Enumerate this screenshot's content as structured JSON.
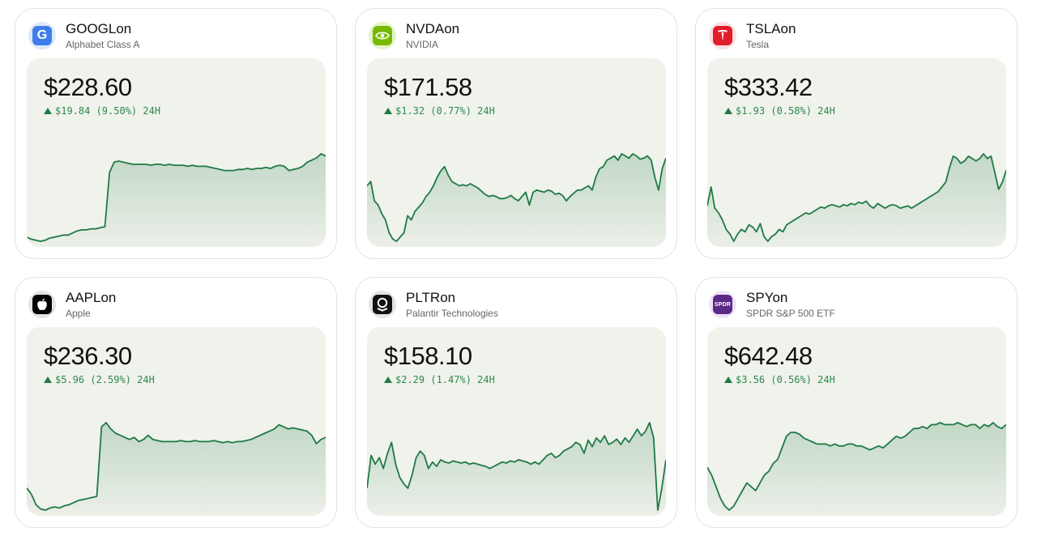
{
  "colors": {
    "up": "#1f7a43",
    "panel": "#f0f2ec"
  },
  "cards": [
    {
      "ticker": "GOOGLon",
      "name": "Alphabet Class A",
      "price": "$228.60",
      "change": "$19.84 (9.50%) 24H",
      "icon": "google-g-icon",
      "logo_text": "G",
      "logo_bg": "#dde8fb",
      "logo_fg": "#3f7ee8",
      "series": [
        8,
        6,
        5,
        4,
        5,
        7,
        8,
        9,
        10,
        10,
        12,
        14,
        15,
        15,
        16,
        16,
        17,
        18,
        70,
        80,
        81,
        80,
        79,
        78,
        78,
        78,
        78,
        77,
        78,
        78,
        77,
        78,
        77,
        77,
        77,
        76,
        77,
        76,
        76,
        76,
        75,
        74,
        73,
        72,
        72,
        72,
        73,
        73,
        74,
        73,
        74,
        74,
        75,
        74,
        76,
        77,
        76,
        72,
        73,
        74,
        76,
        80,
        82,
        84,
        88,
        86
      ]
    },
    {
      "ticker": "NVDAon",
      "name": "NVIDIA",
      "price": "$171.58",
      "change": "$1.32 (0.77%) 24H",
      "icon": "nvidia-eye-icon",
      "logo_text": "",
      "logo_bg": "#e3f4c8",
      "logo_fg": "#76b900",
      "series": [
        62,
        66,
        48,
        44,
        36,
        30,
        18,
        12,
        10,
        14,
        18,
        34,
        30,
        38,
        42,
        46,
        52,
        56,
        62,
        70,
        76,
        80,
        72,
        66,
        64,
        62,
        63,
        62,
        64,
        62,
        60,
        57,
        54,
        52,
        53,
        52,
        50,
        50,
        51,
        53,
        50,
        48,
        52,
        56,
        44,
        56,
        58,
        57,
        56,
        58,
        57,
        54,
        55,
        53,
        48,
        52,
        55,
        58,
        58,
        60,
        62,
        58,
        70,
        78,
        80,
        86,
        88,
        90,
        86,
        92,
        90,
        88,
        92,
        90,
        87,
        88,
        90,
        86,
        70,
        58,
        78,
        88
      ]
    },
    {
      "ticker": "TSLAon",
      "name": "Tesla",
      "price": "$333.42",
      "change": "$1.93 (0.58%) 24H",
      "icon": "tesla-t-icon",
      "logo_text": "T",
      "logo_bg": "#fbe0e0",
      "logo_fg": "#e11d2b",
      "series": [
        50,
        66,
        48,
        44,
        38,
        30,
        26,
        20,
        26,
        30,
        28,
        34,
        32,
        28,
        35,
        24,
        20,
        24,
        26,
        30,
        28,
        34,
        36,
        38,
        40,
        42,
        44,
        43,
        45,
        47,
        49,
        48,
        50,
        51,
        50,
        49,
        51,
        50,
        52,
        51,
        53,
        52,
        54,
        50,
        48,
        52,
        50,
        48,
        50,
        51,
        50,
        48,
        49,
        50,
        48,
        50,
        52,
        54,
        56,
        58,
        60,
        62,
        66,
        70,
        82,
        92,
        90,
        86,
        88,
        92,
        90,
        88,
        90,
        94,
        90,
        92,
        78,
        64,
        70,
        80
      ]
    },
    {
      "ticker": "AAPLon",
      "name": "Apple",
      "price": "$236.30",
      "change": "$5.96 (2.59%) 24H",
      "icon": "apple-icon",
      "logo_text": "",
      "logo_bg": "#e4e4e4",
      "logo_fg": "#000000",
      "series": [
        30,
        24,
        14,
        10,
        9,
        11,
        12,
        11,
        13,
        14,
        16,
        18,
        19,
        20,
        21,
        22,
        88,
        92,
        86,
        82,
        80,
        78,
        76,
        78,
        74,
        76,
        80,
        76,
        75,
        74,
        74,
        74,
        74,
        75,
        74,
        74,
        75,
        74,
        74,
        74,
        75,
        74,
        73,
        74,
        73,
        74,
        74,
        75,
        76,
        78,
        80,
        82,
        84,
        86,
        90,
        88,
        86,
        87,
        86,
        85,
        84,
        80,
        72,
        76,
        78
      ]
    },
    {
      "ticker": "PLTRon",
      "name": "Palantir Technologies",
      "price": "$158.10",
      "change": "$2.29 (1.47%) 24H",
      "icon": "palantir-icon",
      "logo_text": "",
      "logo_bg": "#e4e4e4",
      "logo_fg": "#111111",
      "series": [
        30,
        60,
        52,
        58,
        48,
        62,
        72,
        52,
        40,
        34,
        30,
        42,
        58,
        64,
        60,
        48,
        54,
        50,
        56,
        54,
        53,
        55,
        54,
        53,
        54,
        52,
        53,
        52,
        51,
        50,
        48,
        50,
        52,
        54,
        53,
        55,
        54,
        56,
        55,
        54,
        52,
        54,
        52,
        56,
        60,
        62,
        58,
        60,
        64,
        66,
        68,
        72,
        70,
        62,
        74,
        68,
        76,
        72,
        78,
        70,
        72,
        75,
        70,
        76,
        72,
        78,
        84,
        78,
        82,
        90,
        76,
        10,
        30,
        56
      ]
    },
    {
      "ticker": "SPYon",
      "name": "SPDR S&P 500 ETF",
      "price": "$642.48",
      "change": "$3.56 (0.56%) 24H",
      "icon": "spdr-icon",
      "logo_text": "SPDR",
      "logo_bg": "#ece4f6",
      "logo_fg": "#5b2a86",
      "series": [
        58,
        54,
        48,
        42,
        38,
        36,
        38,
        42,
        46,
        50,
        48,
        46,
        50,
        54,
        56,
        60,
        62,
        68,
        74,
        76,
        76,
        75,
        73,
        72,
        71,
        70,
        70,
        70,
        69,
        70,
        69,
        69,
        70,
        70,
        69,
        69,
        68,
        67,
        68,
        69,
        68,
        70,
        72,
        74,
        73,
        74,
        76,
        78,
        78,
        79,
        78,
        80,
        80,
        81,
        80,
        80,
        80,
        81,
        80,
        79,
        80,
        80,
        78,
        80,
        79,
        81,
        79,
        78,
        80
      ]
    }
  ]
}
